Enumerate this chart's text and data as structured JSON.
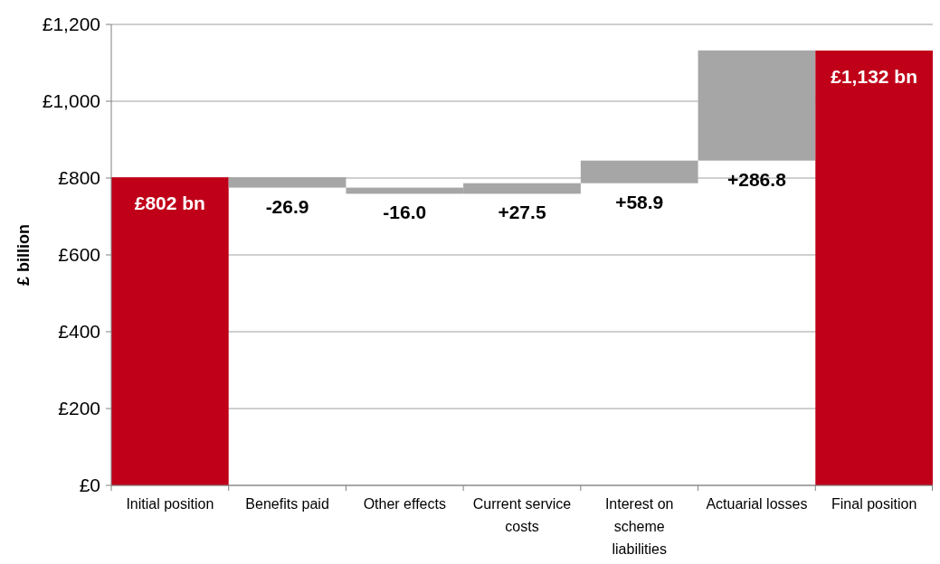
{
  "chart_data": {
    "type": "bar",
    "ylabel": "£ billion",
    "categories": [
      "Initial position",
      "Benefits paid",
      "Other effects",
      "Current service costs",
      "Interest on scheme liabilities",
      "Actuarial losses",
      "Final position"
    ],
    "values": [
      802,
      -26.9,
      -16.0,
      27.5,
      58.9,
      286.8,
      1132
    ],
    "base": [
      0,
      802,
      775.1,
      759.1,
      786.6,
      845.5,
      0
    ],
    "colors": [
      "#c00018",
      "#a6a6a6",
      "#a6a6a6",
      "#a6a6a6",
      "#a6a6a6",
      "#a6a6a6",
      "#c00018"
    ],
    "value_labels": [
      "£802 bn",
      "-26.9",
      "-16.0",
      "+27.5",
      "+58.9",
      "+286.8",
      "£1,132 bn"
    ],
    "ylim": [
      0,
      1200
    ],
    "yticks": [
      {
        "value": 0,
        "label": "£0"
      },
      {
        "value": 200,
        "label": "£200"
      },
      {
        "value": 400,
        "label": "£400"
      },
      {
        "value": 600,
        "label": "£600"
      },
      {
        "value": 800,
        "label": "£800"
      },
      {
        "value": 1000,
        "label": "£1,000"
      },
      {
        "value": 1200,
        "label": "£1,200"
      }
    ],
    "grid": "y"
  }
}
